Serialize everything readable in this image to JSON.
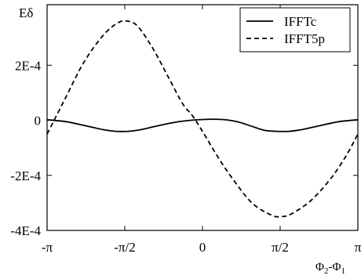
{
  "chart_data": {
    "type": "line",
    "ylabel": "Eδ",
    "xlabel": "Φ2-Φ1",
    "xlabel_parts": {
      "main": "Φ",
      "sub1": "2",
      "sep": "-Φ",
      "sub2": "1"
    },
    "x_unit": "radians",
    "xlim": [
      -3.1416,
      3.1416
    ],
    "ylim": [
      -0.0004,
      0.00042
    ],
    "x_ticks": [
      {
        "value": -3.1416,
        "label": "-π"
      },
      {
        "value": -1.5708,
        "label": "-π/2"
      },
      {
        "value": 0,
        "label": "0"
      },
      {
        "value": 1.5708,
        "label": "π/2"
      },
      {
        "value": 3.1416,
        "label": "π"
      }
    ],
    "y_ticks": [
      {
        "value": 0.0002,
        "label": "2E-4"
      },
      {
        "value": 0,
        "label": "0"
      },
      {
        "value": -0.0002,
        "label": "-2E-4"
      },
      {
        "value": -0.0004,
        "label": "-4E-4"
      }
    ],
    "grid": false,
    "legend_position": "top-right",
    "series": [
      {
        "name": "IFFTc",
        "style": "solid",
        "color": "#000000",
        "x": [
          -3.1416,
          -2.75,
          -2.36,
          -2.0,
          -1.75,
          -1.5,
          -1.25,
          -1.0,
          -0.7,
          -0.4,
          0,
          0.4,
          0.7,
          1.0,
          1.25,
          1.5,
          1.75,
          2.0,
          2.36,
          2.75,
          3.1416
        ],
        "y": [
          2e-06,
          -5e-06,
          -2e-05,
          -3.4e-05,
          -4e-05,
          -4e-05,
          -3.4e-05,
          -2.4e-05,
          -1.2e-05,
          -3e-06,
          3e-06,
          3e-06,
          -5e-06,
          -2.2e-05,
          -3.6e-05,
          -4e-05,
          -4e-05,
          -3.4e-05,
          -2e-05,
          -5e-06,
          2e-06
        ]
      },
      {
        "name": "IFFT5p",
        "style": "dashed",
        "color": "#000000",
        "x": [
          -3.1416,
          -2.8,
          -2.4,
          -2.0,
          -1.7,
          -1.5,
          -1.3,
          -1.0,
          -0.7,
          -0.4,
          -0.2,
          0,
          0.3,
          0.6,
          1.0,
          1.4,
          1.6,
          1.8,
          2.2,
          2.6,
          2.9,
          3.1416
        ],
        "y": [
          -5e-05,
          7e-05,
          0.00021,
          0.00031,
          0.000355,
          0.00036,
          0.00034,
          0.00026,
          0.00016,
          6e-05,
          1.6e-05,
          -4e-05,
          -0.00013,
          -0.00021,
          -0.0003,
          -0.000345,
          -0.00035,
          -0.00034,
          -0.00029,
          -0.00021,
          -0.00013,
          -5e-05
        ]
      }
    ]
  }
}
